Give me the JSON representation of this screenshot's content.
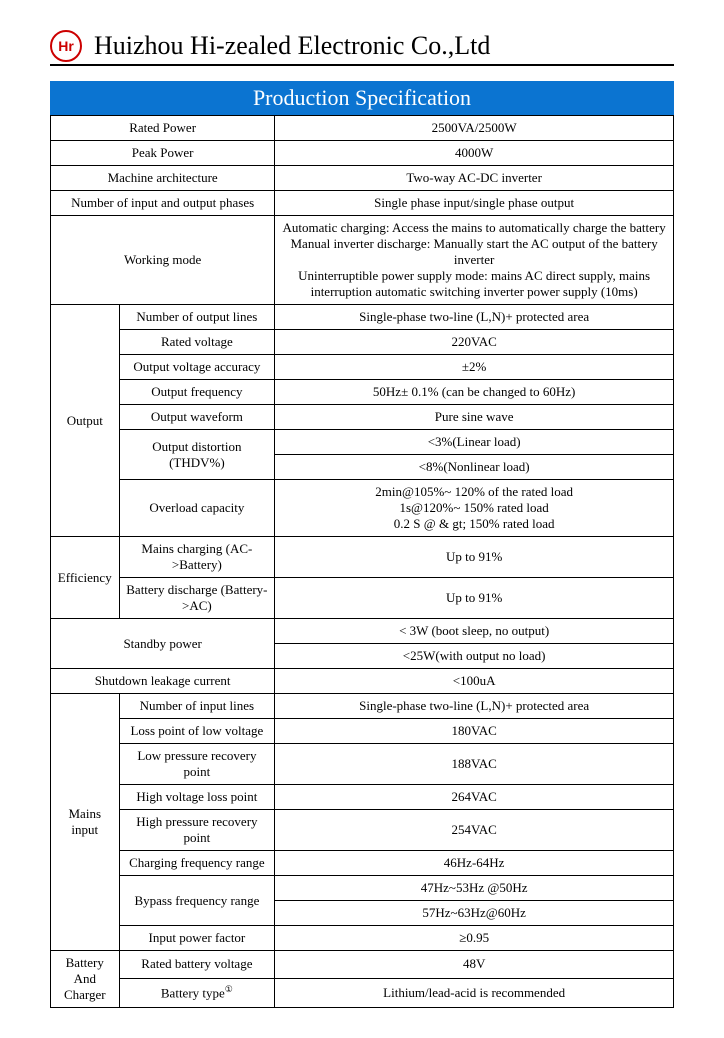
{
  "header": {
    "logo_text": "Hr",
    "company": "Huizhou Hi-zealed Electronic Co.,Ltd"
  },
  "title": "Production Specification",
  "rows": {
    "rated_power_l": "Rated Power",
    "rated_power_v": "2500VA/2500W",
    "peak_power_l": "Peak Power",
    "peak_power_v": "4000W",
    "machine_arch_l": "Machine architecture",
    "machine_arch_v": "Two-way AC-DC inverter",
    "io_phases_l": "Number of input and output phases",
    "io_phases_v": "Single phase input/single phase output",
    "working_mode_l": "Working mode",
    "working_mode_v1": "Automatic charging: Access the mains to automatically charge the battery",
    "working_mode_v2": "Manual inverter discharge: Manually start the AC output of the battery inverter",
    "working_mode_v3": "Uninterruptible power supply mode: mains AC direct supply, mains interruption automatic switching inverter power supply (10ms)",
    "output_l": "Output",
    "out_lines_l": "Number of output lines",
    "out_lines_v": "Single-phase two-line (L,N)+ protected area",
    "rated_voltage_l": "Rated voltage",
    "rated_voltage_v": "220VAC",
    "out_acc_l": "Output voltage accuracy",
    "out_acc_v": "±2%",
    "out_freq_l": "Output frequency",
    "out_freq_v": "50Hz± 0.1% (can be changed to 60Hz)",
    "out_wave_l": "Output waveform",
    "out_wave_v": "Pure sine wave",
    "out_dist_l": "Output distortion (THDV%)",
    "out_dist_v1": "<3%(Linear load)",
    "out_dist_v2": "<8%(Nonlinear load)",
    "overload_l": "Overload capacity",
    "overload_v1": "2min@105%~ 120% of the rated load",
    "overload_v2": "1s@120%~ 150% rated load",
    "overload_v3": "0.2 S @ & gt; 150% rated load",
    "eff_l": "Efficiency",
    "eff_chg_l": "Mains charging (AC->Battery)",
    "eff_chg_v": "Up to 91%",
    "eff_dis_l": "Battery discharge (Battery->AC)",
    "eff_dis_v": "Up to 91%",
    "standby_l": "Standby power",
    "standby_v1": "< 3W (boot sleep, no output)",
    "standby_v2": "<25W(with output no load)",
    "leak_l": "Shutdown leakage current",
    "leak_v": "<100uA",
    "mains_l": "Mains input",
    "in_lines_l": "Number of input lines",
    "in_lines_v": "Single-phase two-line (L,N)+ protected area",
    "loss_lv_l": "Loss point of low voltage",
    "loss_lv_v": "180VAC",
    "rec_lv_l": "Low pressure recovery point",
    "rec_lv_v": "188VAC",
    "loss_hv_l": "High voltage loss point",
    "loss_hv_v": "264VAC",
    "rec_hv_l": "High pressure recovery point",
    "rec_hv_v": "254VAC",
    "chg_freq_l": "Charging frequency range",
    "chg_freq_v": "46Hz-64Hz",
    "byp_freq_l": "Bypass frequency range",
    "byp_freq_v1": "47Hz~53Hz @50Hz",
    "byp_freq_v2": "57Hz~63Hz@60Hz",
    "pf_l": "Input power factor",
    "pf_v": "≥0.95",
    "batt_l": "Battery And Charger",
    "batt_v_l": "Rated battery voltage",
    "batt_v_v": "48V",
    "batt_t_l": "Battery type",
    "batt_t_sup": "①",
    "batt_t_v": "Lithium/lead-acid is recommended"
  }
}
